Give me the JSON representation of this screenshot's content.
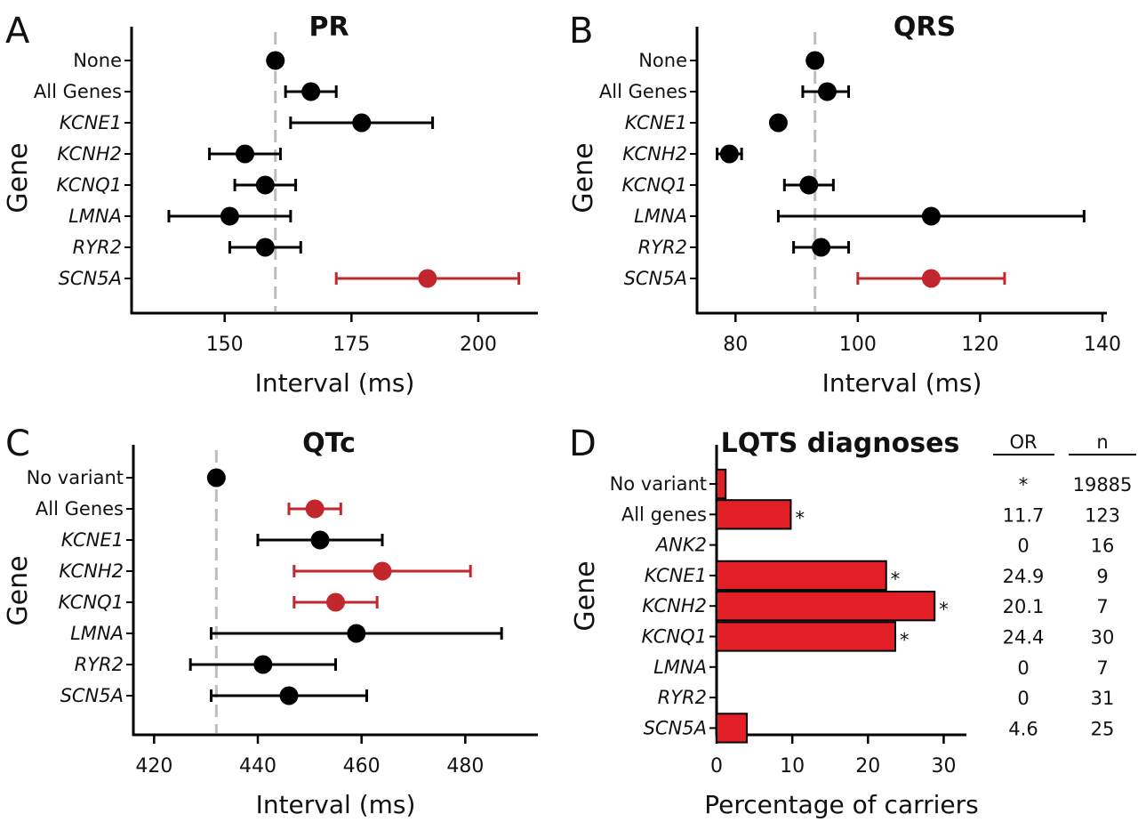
{
  "chart_data": [
    {
      "panel": "A",
      "type": "scatter",
      "title": "PR",
      "xlabel": "Interval (ms)",
      "ylabel": "Gene",
      "xlim": [
        132,
        210
      ],
      "xticks": [
        150,
        175,
        200
      ],
      "reference_line": 160,
      "categories": [
        "None",
        "All Genes",
        "KCNE1",
        "KCNH2",
        "KCNQ1",
        "LMNA",
        "RYR2",
        "SCN5A"
      ],
      "italic": [
        false,
        false,
        true,
        true,
        true,
        true,
        true,
        true
      ],
      "points": [
        {
          "mean": 160,
          "low": null,
          "high": null,
          "color": "#000000"
        },
        {
          "mean": 167,
          "low": 162,
          "high": 172,
          "color": "#000000"
        },
        {
          "mean": 177,
          "low": 163,
          "high": 191,
          "color": "#000000"
        },
        {
          "mean": 154,
          "low": 147,
          "high": 161,
          "color": "#000000"
        },
        {
          "mean": 158,
          "low": 152,
          "high": 164,
          "color": "#000000"
        },
        {
          "mean": 151,
          "low": 139,
          "high": 163,
          "color": "#000000"
        },
        {
          "mean": 158,
          "low": 151,
          "high": 165,
          "color": "#000000"
        },
        {
          "mean": 190,
          "low": 172,
          "high": 208,
          "color": "#c1272d"
        }
      ]
    },
    {
      "panel": "B",
      "type": "scatter",
      "title": "QRS",
      "xlabel": "Interval (ms)",
      "ylabel": "Gene",
      "xlim": [
        74,
        140
      ],
      "xticks": [
        80,
        100,
        120,
        140
      ],
      "reference_line": 93,
      "categories": [
        "None",
        "All Genes",
        "KCNE1",
        "KCNH2",
        "KCNQ1",
        "LMNA",
        "RYR2",
        "SCN5A"
      ],
      "italic": [
        false,
        false,
        true,
        true,
        true,
        true,
        true,
        true
      ],
      "points": [
        {
          "mean": 93,
          "low": null,
          "high": null,
          "color": "#000000"
        },
        {
          "mean": 95,
          "low": 91,
          "high": 98.5,
          "color": "#000000"
        },
        {
          "mean": 87,
          "low": null,
          "high": null,
          "color": "#000000"
        },
        {
          "mean": 79,
          "low": 77,
          "high": 81,
          "color": "#000000"
        },
        {
          "mean": 92,
          "low": 88,
          "high": 96,
          "color": "#000000"
        },
        {
          "mean": 112,
          "low": 87,
          "high": 137,
          "color": "#000000"
        },
        {
          "mean": 94,
          "low": 89.5,
          "high": 98.5,
          "color": "#000000"
        },
        {
          "mean": 112,
          "low": 100,
          "high": 124,
          "color": "#c1272d"
        }
      ]
    },
    {
      "panel": "C",
      "type": "scatter",
      "title": "QTc",
      "xlabel": "Interval (ms)",
      "ylabel": "Gene",
      "xlim": [
        416,
        494
      ],
      "xticks": [
        420,
        440,
        460,
        480
      ],
      "reference_line": 432,
      "categories": [
        "No variant",
        "All Genes",
        "KCNE1",
        "KCNH2",
        "KCNQ1",
        "LMNA",
        "RYR2",
        "SCN5A"
      ],
      "italic": [
        false,
        false,
        true,
        true,
        true,
        true,
        true,
        true
      ],
      "points": [
        {
          "mean": 432,
          "low": null,
          "high": null,
          "color": "#000000"
        },
        {
          "mean": 451,
          "low": 446,
          "high": 456,
          "color": "#c1272d"
        },
        {
          "mean": 452,
          "low": 440,
          "high": 464,
          "color": "#000000"
        },
        {
          "mean": 464,
          "low": 447,
          "high": 481,
          "color": "#c1272d"
        },
        {
          "mean": 455,
          "low": 447,
          "high": 463,
          "color": "#c1272d"
        },
        {
          "mean": 459,
          "low": 431,
          "high": 487,
          "color": "#000000"
        },
        {
          "mean": 441,
          "low": 427,
          "high": 455,
          "color": "#000000"
        },
        {
          "mean": 446,
          "low": 431,
          "high": 461,
          "color": "#000000"
        }
      ]
    },
    {
      "panel": "D",
      "type": "bar",
      "title": "LQTS diagnoses",
      "xlabel": "Percentage of carriers",
      "ylabel": "Gene",
      "xlim": [
        0,
        33
      ],
      "xticks": [
        0,
        10,
        20,
        30
      ],
      "bar_color": "#e21f26",
      "categories": [
        "No variant",
        "All genes",
        "ANK2",
        "KCNE1",
        "KCNH2",
        "KCNQ1",
        "LMNA",
        "RYR2",
        "SCN5A"
      ],
      "italic": [
        false,
        false,
        true,
        true,
        true,
        true,
        true,
        true,
        true
      ],
      "values": [
        1.2,
        9.8,
        0,
        22.4,
        28.8,
        23.6,
        0,
        0,
        4.0
      ],
      "stars": [
        "",
        "*",
        "",
        "*",
        "*",
        "*",
        "",
        "",
        ""
      ],
      "table": {
        "headers": [
          "OR",
          "n"
        ],
        "or": [
          "*",
          "11.7",
          "0",
          "24.9",
          "20.1",
          "24.4",
          "0",
          "0",
          "4.6"
        ],
        "n": [
          "19885",
          "123",
          "16",
          "9",
          "7",
          "30",
          "7",
          "31",
          "25"
        ]
      }
    }
  ]
}
